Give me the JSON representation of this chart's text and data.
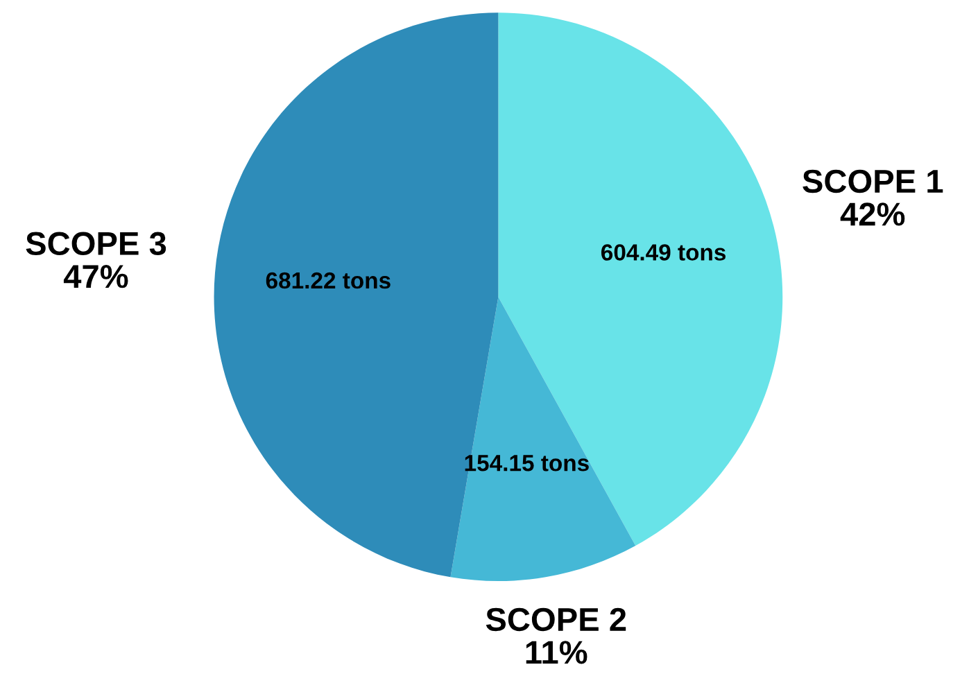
{
  "chart_data": {
    "type": "pie",
    "categories": [
      "SCOPE 1\n42%",
      "SCOPE 2\n11%",
      "SCOPE 3\n47%"
    ],
    "values": [
      604.49,
      154.15,
      681.22
    ],
    "value_labels": [
      "604.49 tons",
      "154.15 tons",
      "681.22 tons"
    ],
    "colors": [
      "#68e3e8",
      "#45b8d6",
      "#2e8cb9"
    ],
    "legend": false
  }
}
